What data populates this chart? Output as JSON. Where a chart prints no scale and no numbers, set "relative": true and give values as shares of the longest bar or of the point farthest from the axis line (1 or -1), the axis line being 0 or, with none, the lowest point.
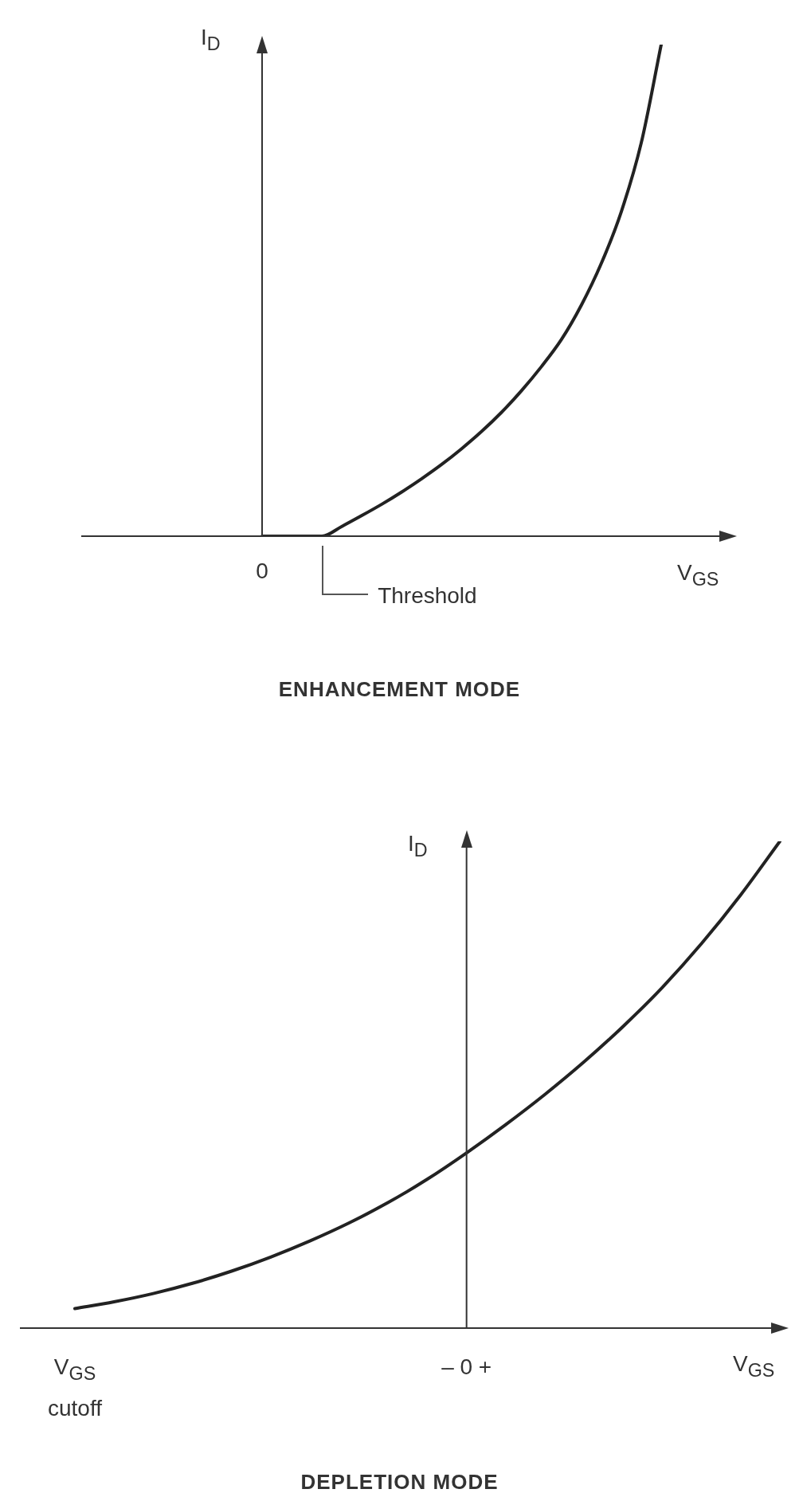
{
  "chart_data": [
    {
      "type": "line",
      "title": "ENHANCEMENT MODE",
      "xlabel": "V$_{GS}$",
      "ylabel": "I$_{D}$",
      "relative": true,
      "marker": "none",
      "color": "#222222",
      "annotations": [
        "0",
        "Threshold"
      ],
      "categories": [
        null,
        null,
        null,
        null,
        null,
        null,
        null,
        null,
        null,
        null,
        null,
        null,
        null,
        null,
        null,
        null,
        null,
        null,
        null,
        null,
        null
      ],
      "values": [
        0,
        0,
        0,
        0,
        0.02,
        0.042,
        0.065,
        0.09,
        0.117,
        0.146,
        0.178,
        0.213,
        0.252,
        0.296,
        0.345,
        0.4,
        0.47,
        0.555,
        0.66,
        0.8,
        1
      ]
    },
    {
      "type": "line",
      "title": "DEPLETION MODE",
      "xlabel": "V$_{GS}$",
      "ylabel": "I$_{D}$",
      "relative": true,
      "marker": "none",
      "color": "#222222",
      "categories": [
        "V$_{GS}$ cutoff",
        null,
        null,
        null,
        null,
        null,
        null,
        null,
        null,
        null,
        "– 0 +",
        null,
        null,
        null,
        null,
        null,
        null,
        null,
        null
      ],
      "values": [
        0.04,
        0.054,
        0.071,
        0.092,
        0.117,
        0.146,
        0.179,
        0.216,
        0.258,
        0.306,
        0.36,
        0.418,
        0.48,
        0.547,
        0.62,
        0.7,
        0.79,
        0.89,
        1
      ]
    }
  ]
}
